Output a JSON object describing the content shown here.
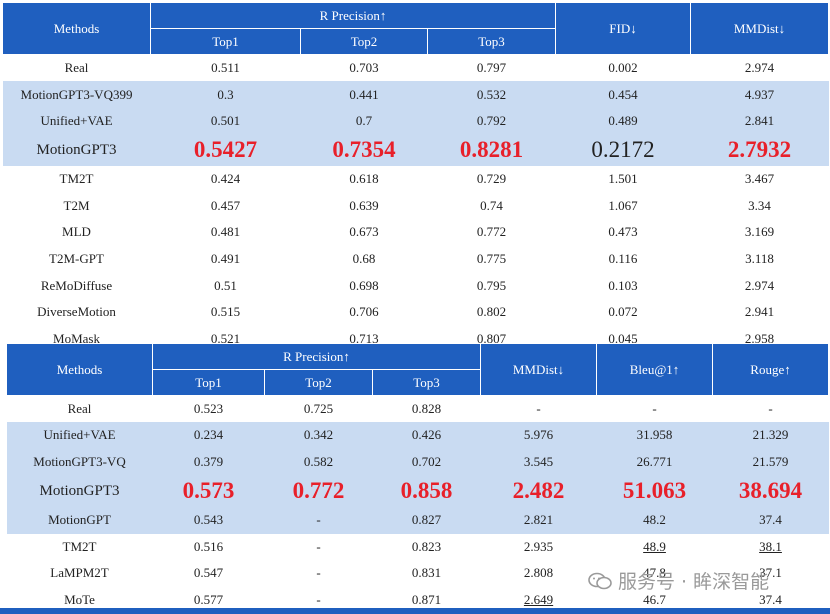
{
  "table1": {
    "header": {
      "methods": "Methods",
      "rprecision": "R Precision↑",
      "top1": "Top1",
      "top2": "Top2",
      "top3": "Top3",
      "fid": "FID↓",
      "mmdist": "MMDist↓"
    },
    "rows": [
      {
        "name": "Real",
        "top1": "0.511",
        "top2": "0.703",
        "top3": "0.797",
        "fid": "0.002",
        "mmdist": "2.974",
        "style": "white"
      },
      {
        "name": "MotionGPT3-VQ399",
        "top1": "0.3",
        "top2": "0.441",
        "top3": "0.532",
        "fid": "0.454",
        "mmdist": "4.937",
        "style": "blue"
      },
      {
        "name": "Unified+VAE",
        "top1": "0.501",
        "top2": "0.7",
        "top3": "0.792",
        "fid": "0.489",
        "mmdist": "2.841",
        "style": "blue"
      },
      {
        "name": "MotionGPT3",
        "top1": "0.5427",
        "top2": "0.7354",
        "top3": "0.8281",
        "fid": "0.2172",
        "mmdist": "2.7932",
        "style": "big"
      },
      {
        "name": "TM2T",
        "top1": "0.424",
        "top2": "0.618",
        "top3": "0.729",
        "fid": "1.501",
        "mmdist": "3.467",
        "style": "white"
      },
      {
        "name": "T2M",
        "top1": "0.457",
        "top2": "0.639",
        "top3": "0.74",
        "fid": "1.067",
        "mmdist": "3.34",
        "style": "white"
      },
      {
        "name": "MLD",
        "top1": "0.481",
        "top2": "0.673",
        "top3": "0.772",
        "fid": "0.473",
        "mmdist": "3.169",
        "style": "white"
      },
      {
        "name": "T2M-GPT",
        "top1": "0.491",
        "top2": "0.68",
        "top3": "0.775",
        "fid": "0.116",
        "mmdist": "3.118",
        "style": "white"
      },
      {
        "name": "ReMoDiffuse",
        "top1": "0.51",
        "top2": "0.698",
        "top3": "0.795",
        "fid": "0.103",
        "mmdist": "2.974",
        "style": "white"
      },
      {
        "name": "DiverseMotion",
        "top1": "0.515",
        "top2": "0.706",
        "top3": "0.802",
        "fid": "0.072",
        "mmdist": "2.941",
        "style": "white"
      },
      {
        "name": "MoMask",
        "top1": "0.521",
        "top2": "0.713",
        "top3": "0.807",
        "fid": "0.045",
        "mmdist": "2.958",
        "style": "white"
      }
    ]
  },
  "table2": {
    "header": {
      "methods": "Methods",
      "rprecision": "R Precision↑",
      "top1": "Top1",
      "top2": "Top2",
      "top3": "Top3",
      "mmdist": "MMDist↓",
      "bleu": "Bleu@1↑",
      "rouge": "Rouge↑"
    },
    "rows": [
      {
        "name": "Real",
        "top1": "0.523",
        "top2": "0.725",
        "top3": "0.828",
        "mmdist": "-",
        "bleu": "-",
        "rouge": "-",
        "style": "white"
      },
      {
        "name": "Unified+VAE",
        "top1": "0.234",
        "top2": "0.342",
        "top3": "0.426",
        "mmdist": "5.976",
        "bleu": "31.958",
        "rouge": "21.329",
        "style": "blue"
      },
      {
        "name": "MotionGPT3-VQ",
        "top1": "0.379",
        "top2": "0.582",
        "top3": "0.702",
        "mmdist": "3.545",
        "bleu": "26.771",
        "rouge": "21.579",
        "style": "blue"
      },
      {
        "name": "MotionGPT3",
        "top1": "0.573",
        "top2": "0.772",
        "top3": "0.858",
        "mmdist": "2.482",
        "bleu": "51.063",
        "rouge": "38.694",
        "style": "big"
      },
      {
        "name": "MotionGPT",
        "top1": "0.543",
        "top2": "-",
        "top3": "0.827",
        "mmdist": "2.821",
        "bleu": "48.2",
        "rouge": "37.4",
        "style": "blue"
      },
      {
        "name": "TM2T",
        "top1": "0.516",
        "top2": "-",
        "top3": "0.823",
        "mmdist": "2.935",
        "bleu": "48.9",
        "rouge": "38.1",
        "style": "white",
        "u_bleu": true,
        "u_rouge": true
      },
      {
        "name": "LaMPM2T",
        "top1": "0.547",
        "top2": "-",
        "top3": "0.831",
        "mmdist": "2.808",
        "bleu": "47.8",
        "rouge": "37.1",
        "style": "white"
      },
      {
        "name": "MoTe",
        "top1": "0.577",
        "top2": "-",
        "top3": "0.871",
        "mmdist": "2.649",
        "bleu": "46.7",
        "rouge": "37.4",
        "style": "white",
        "u_mmdist": true
      }
    ]
  },
  "watermark": {
    "text": "服务号 · 眸深智能",
    "icon": "wechat-icon"
  },
  "colors": {
    "header": "#1f5fbf",
    "highlight_row": "#c9dbf2",
    "best_value": "#e8202a"
  }
}
